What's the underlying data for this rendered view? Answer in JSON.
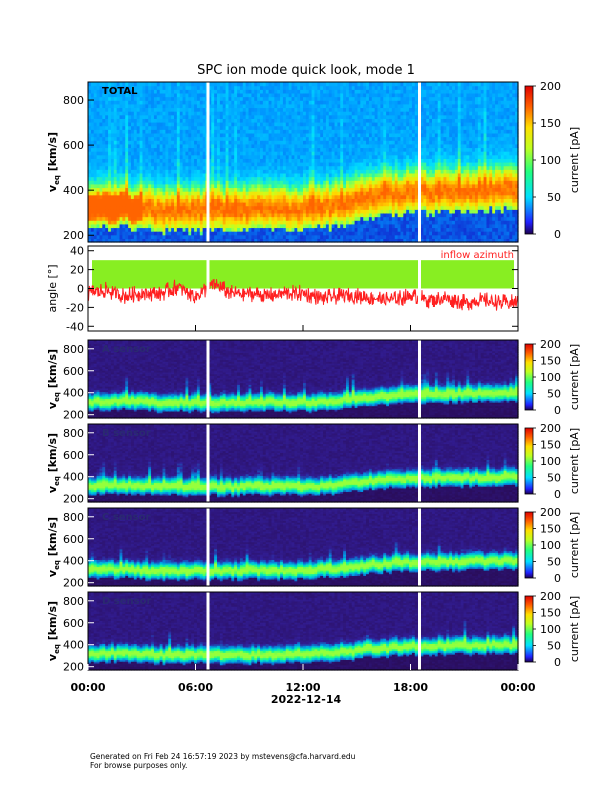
{
  "title": "SPC ion mode quick look, mode 1",
  "date_label": "2022-12-14",
  "footer": {
    "line1": "Generated on Fri Feb 24 16:57:19 2023 by mstevens@cfa.harvard.edu",
    "line2": "For browse purposes only."
  },
  "colors": {
    "angle_series": "#ff2020",
    "angle_band": "#88ee22",
    "data_gap": "#ffffff"
  },
  "chart_data": [
    {
      "type": "heatmap",
      "panel_label": "TOTAL",
      "ylabel_main": "v",
      "ylabel_sub": "eq",
      "ylabel_unit": "[km/s]",
      "ylim": [
        170,
        880
      ],
      "yticks": [
        200,
        400,
        600,
        800
      ],
      "xlim": [
        0,
        24
      ],
      "xticks": [
        0,
        6,
        12,
        18,
        24
      ],
      "data_gaps_hours": [
        6.7,
        18.5
      ],
      "colorbar": {
        "label": "current [pA]",
        "range": [
          0,
          200
        ],
        "ticks": [
          0,
          50,
          100,
          150,
          200
        ]
      },
      "speed_trend_hours": [
        0,
        2,
        4,
        6,
        8,
        10,
        12,
        14,
        16,
        18,
        20,
        22,
        24
      ],
      "speed_trend_kms": [
        320,
        330,
        310,
        315,
        310,
        320,
        315,
        335,
        370,
        390,
        395,
        400,
        405
      ]
    },
    {
      "type": "line",
      "panel_label": "inflow azimuth",
      "ylabel": "angle [°]",
      "ylim": [
        -45,
        45
      ],
      "yticks": [
        -40,
        -20,
        0,
        20,
        40
      ],
      "xlim": [
        0,
        24
      ],
      "xticks": [
        0,
        6,
        12,
        18,
        24
      ],
      "band_range": [
        0,
        30
      ],
      "series": [
        {
          "x": [
            0,
            1,
            2,
            3,
            4,
            5,
            6,
            7,
            8,
            9,
            10,
            11,
            12,
            13,
            14,
            15,
            16,
            17,
            18,
            19,
            20,
            21,
            22,
            23,
            24
          ],
          "values": [
            -5,
            -2,
            -8,
            -5,
            -6,
            2,
            -8,
            5,
            -5,
            -5,
            -8,
            -5,
            -5,
            -10,
            -8,
            -8,
            -10,
            -12,
            -8,
            -12,
            -10,
            -15,
            -12,
            -15,
            -15
          ]
        }
      ]
    },
    {
      "type": "heatmap",
      "panel_label": "A sensor",
      "ylabel_main": "v",
      "ylabel_sub": "eq",
      "ylabel_unit": "[km/s]",
      "ylim": [
        170,
        880
      ],
      "yticks": [
        200,
        400,
        600,
        800
      ],
      "colorbar": {
        "label": "current [pA]",
        "range": [
          0,
          200
        ],
        "ticks": [
          0,
          50,
          100,
          150,
          200
        ]
      }
    },
    {
      "type": "heatmap",
      "panel_label": "B sensor",
      "ylabel_main": "v",
      "ylabel_sub": "eq",
      "ylabel_unit": "[km/s]",
      "ylim": [
        170,
        880
      ],
      "yticks": [
        200,
        400,
        600,
        800
      ],
      "colorbar": {
        "label": "current [pA]",
        "range": [
          0,
          200
        ],
        "ticks": [
          0,
          50,
          100,
          150,
          200
        ]
      }
    },
    {
      "type": "heatmap",
      "panel_label": "C sensor",
      "ylabel_main": "v",
      "ylabel_sub": "eq",
      "ylabel_unit": "[km/s]",
      "ylim": [
        170,
        880
      ],
      "yticks": [
        200,
        400,
        600,
        800
      ],
      "colorbar": {
        "label": "current [pA]",
        "range": [
          0,
          200
        ],
        "ticks": [
          0,
          50,
          100,
          150,
          200
        ]
      }
    },
    {
      "type": "heatmap",
      "panel_label": "D sensor",
      "ylabel_main": "v",
      "ylabel_sub": "eq",
      "ylabel_unit": "[km/s]",
      "ylim": [
        170,
        880
      ],
      "yticks": [
        200,
        400,
        600,
        800
      ],
      "xticklabels": [
        "00:00",
        "06:00",
        "12:00",
        "18:00",
        "00:00"
      ],
      "colorbar": {
        "label": "current [pA]",
        "range": [
          0,
          200
        ],
        "ticks": [
          0,
          50,
          100,
          150,
          200
        ]
      }
    }
  ]
}
